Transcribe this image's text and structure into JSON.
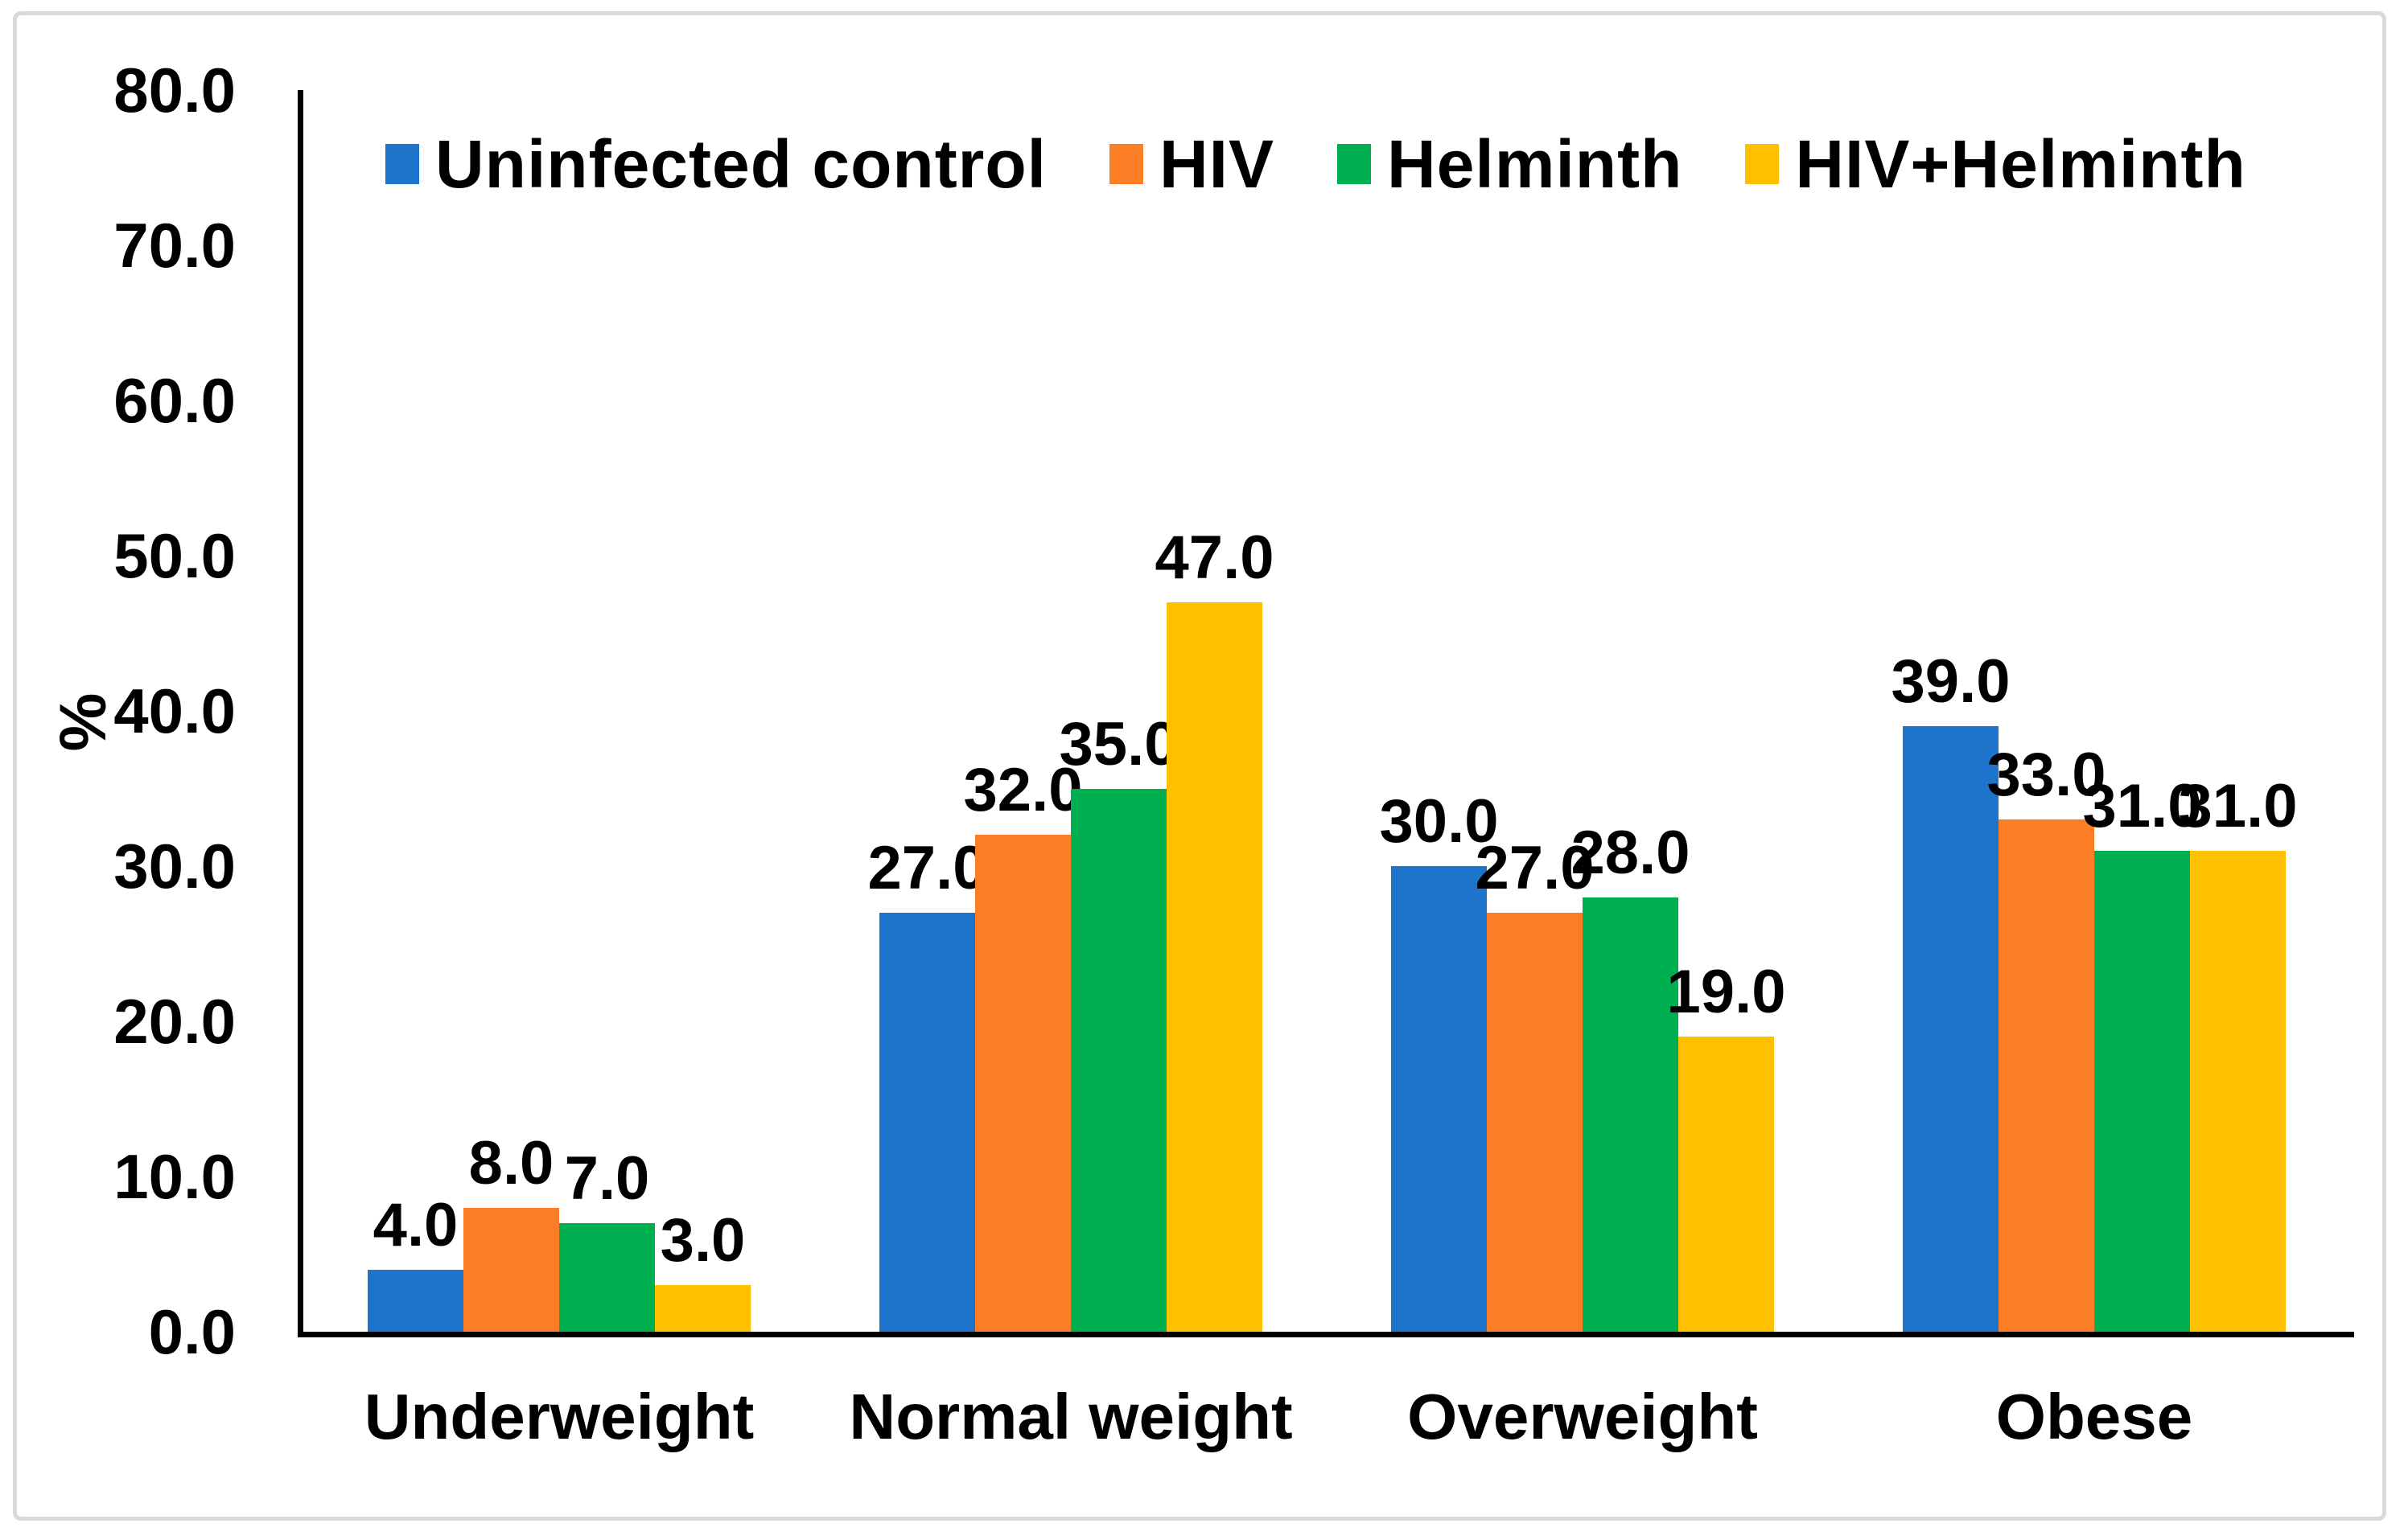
{
  "chart_data": {
    "type": "bar",
    "title": "",
    "ylabel": "%",
    "xlabel": "",
    "ylim": [
      0,
      80
    ],
    "ytick_step": 10,
    "ytick_labels": [
      "80.0",
      "70.0",
      "60.0",
      "50.0",
      "40.0",
      "30.0",
      "20.0",
      "10.0",
      "0.0"
    ],
    "grid": false,
    "legend_position": "top-inside",
    "data_label_format": "one-decimal",
    "categories": [
      "Underweight",
      "Normal weight",
      "Overweight",
      "Obese"
    ],
    "series": [
      {
        "name": "Uninfected control",
        "color": "#1E73CB",
        "values": [
          4.0,
          27.0,
          30.0,
          39.0
        ]
      },
      {
        "name": "HIV",
        "color": "#FB7D26",
        "values": [
          8.0,
          32.0,
          27.0,
          33.0
        ]
      },
      {
        "name": "Helminth",
        "color": "#00AF50",
        "values": [
          7.0,
          35.0,
          28.0,
          31.0
        ]
      },
      {
        "name": "HIV+Helminth",
        "color": "#FFC000",
        "values": [
          3.0,
          47.0,
          19.0,
          31.0
        ]
      }
    ],
    "colors": {
      "axis": "#000000",
      "text": "#000000",
      "frame_border": "#d9d9d9",
      "background": "#ffffff"
    }
  }
}
